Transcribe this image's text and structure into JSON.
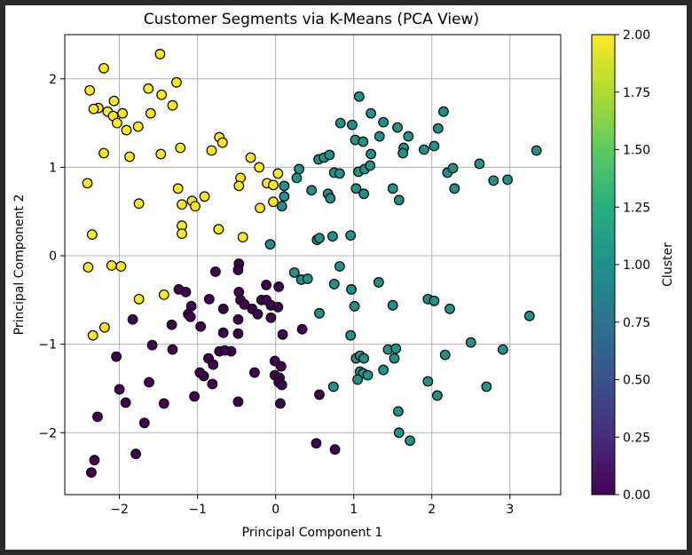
{
  "chart_data": {
    "type": "scatter",
    "title": "Customer Segments via K-Means (PCA View)",
    "xlabel": "Principal Component 1",
    "ylabel": "Principal Component 2",
    "xlim": [
      -2.7,
      3.65
    ],
    "ylim": [
      -2.7,
      2.5
    ],
    "xticks": [
      -2,
      -1,
      0,
      1,
      2,
      3
    ],
    "xtick_labels": [
      "−2",
      "−1",
      "0",
      "1",
      "2",
      "3"
    ],
    "yticks": [
      -2,
      -1,
      0,
      1,
      2
    ],
    "ytick_labels": [
      "−2",
      "−1",
      "0",
      "1",
      "2"
    ],
    "grid": true,
    "colormap": "viridis",
    "colorbar": {
      "label": "Cluster",
      "min": 0.0,
      "max": 2.0,
      "ticks": [
        0.0,
        0.25,
        0.5,
        0.75,
        1.0,
        1.25,
        1.5,
        1.75,
        2.0
      ],
      "tick_labels": [
        "0.00",
        "0.25",
        "0.50",
        "0.75",
        "1.00",
        "1.25",
        "1.50",
        "1.75",
        "2.00"
      ]
    },
    "cluster_colors": {
      "0": "#440154",
      "1": "#21918c",
      "2": "#fde725"
    },
    "marker_edge_color": "#000000",
    "series": [
      {
        "cluster": 2,
        "points": [
          [
            -1.48,
            2.28
          ],
          [
            -2.2,
            2.12
          ],
          [
            -1.27,
            1.96
          ],
          [
            -2.38,
            1.87
          ],
          [
            -1.63,
            1.89
          ],
          [
            -1.46,
            1.82
          ],
          [
            -2.07,
            1.75
          ],
          [
            -1.32,
            1.7
          ],
          [
            -2.27,
            1.67
          ],
          [
            -2.33,
            1.66
          ],
          [
            -2.15,
            1.63
          ],
          [
            -2.08,
            1.58
          ],
          [
            -1.96,
            1.61
          ],
          [
            -1.6,
            1.61
          ],
          [
            -2.03,
            1.5
          ],
          [
            -1.76,
            1.46
          ],
          [
            -1.91,
            1.42
          ],
          [
            -2.2,
            1.16
          ],
          [
            -1.87,
            1.12
          ],
          [
            -1.47,
            1.15
          ],
          [
            -1.22,
            1.22
          ],
          [
            -0.72,
            1.34
          ],
          [
            -0.68,
            1.28
          ],
          [
            -0.82,
            1.19
          ],
          [
            -0.32,
            1.11
          ],
          [
            -0.21,
            1.0
          ],
          [
            -0.11,
            0.82
          ],
          [
            -0.03,
            0.8
          ],
          [
            0.03,
            0.93
          ],
          [
            -0.45,
            0.88
          ],
          [
            -0.47,
            0.79
          ],
          [
            -1.25,
            0.76
          ],
          [
            -2.41,
            0.82
          ],
          [
            -1.07,
            0.62
          ],
          [
            -0.91,
            0.67
          ],
          [
            -1.2,
            0.58
          ],
          [
            -1.03,
            0.56
          ],
          [
            -1.75,
            0.59
          ],
          [
            -0.2,
            0.54
          ],
          [
            -0.03,
            0.61
          ],
          [
            -1.2,
            0.34
          ],
          [
            -1.2,
            0.25
          ],
          [
            -0.73,
            0.3
          ],
          [
            -0.42,
            0.21
          ],
          [
            -2.35,
            0.24
          ],
          [
            -2.4,
            -0.13
          ],
          [
            -2.1,
            -0.11
          ],
          [
            -1.98,
            -0.12
          ],
          [
            -1.43,
            -0.44
          ],
          [
            -1.75,
            -0.49
          ],
          [
            -2.19,
            -0.81
          ],
          [
            -2.34,
            -0.9
          ]
        ]
      },
      {
        "cluster": 1,
        "points": [
          [
            1.07,
            1.8
          ],
          [
            2.15,
            1.63
          ],
          [
            1.22,
            1.61
          ],
          [
            1.38,
            1.51
          ],
          [
            0.83,
            1.5
          ],
          [
            0.98,
            1.48
          ],
          [
            1.56,
            1.45
          ],
          [
            2.08,
            1.44
          ],
          [
            1.7,
            1.35
          ],
          [
            1.33,
            1.35
          ],
          [
            1.02,
            1.31
          ],
          [
            1.12,
            1.29
          ],
          [
            1.64,
            1.22
          ],
          [
            1.63,
            1.16
          ],
          [
            1.9,
            1.2
          ],
          [
            2.03,
            1.24
          ],
          [
            0.55,
            1.09
          ],
          [
            0.62,
            1.11
          ],
          [
            0.69,
            1.14
          ],
          [
            1.22,
            1.15
          ],
          [
            0.3,
            0.98
          ],
          [
            0.75,
            0.94
          ],
          [
            1.06,
            0.95
          ],
          [
            1.14,
            0.98
          ],
          [
            1.21,
            1.02
          ],
          [
            2.2,
            0.94
          ],
          [
            2.27,
            0.99
          ],
          [
            2.61,
            1.04
          ],
          [
            3.34,
            1.19
          ],
          [
            0.27,
            0.88
          ],
          [
            0.82,
            0.93
          ],
          [
            1.03,
            0.76
          ],
          [
            2.79,
            0.85
          ],
          [
            2.97,
            0.86
          ],
          [
            0.11,
            0.79
          ],
          [
            0.46,
            0.74
          ],
          [
            0.67,
            0.7
          ],
          [
            0.7,
            0.65
          ],
          [
            1.13,
            0.7
          ],
          [
            1.5,
            0.76
          ],
          [
            1.58,
            0.63
          ],
          [
            2.29,
            0.76
          ],
          [
            0.11,
            0.67
          ],
          [
            0.08,
            0.56
          ],
          [
            0.53,
            0.18
          ],
          [
            0.56,
            0.2
          ],
          [
            0.73,
            0.22
          ],
          [
            0.96,
            0.23
          ],
          [
            -0.07,
            0.13
          ],
          [
            0.24,
            -0.19
          ],
          [
            0.82,
            -0.12
          ],
          [
            0.33,
            -0.27
          ],
          [
            0.41,
            -0.26
          ],
          [
            0.75,
            -0.32
          ],
          [
            1.32,
            -0.3
          ],
          [
            0.97,
            -0.38
          ],
          [
            1.95,
            -0.49
          ],
          [
            2.03,
            -0.51
          ],
          [
            2.23,
            -0.6
          ],
          [
            1.5,
            -0.56
          ],
          [
            1.01,
            -0.57
          ],
          [
            0.56,
            -0.65
          ],
          [
            3.25,
            -0.68
          ],
          [
            0.96,
            -0.9
          ],
          [
            2.5,
            -0.98
          ],
          [
            1.44,
            -1.06
          ],
          [
            1.54,
            -1.05
          ],
          [
            2.91,
            -1.06
          ],
          [
            1.03,
            -1.16
          ],
          [
            1.08,
            -1.13
          ],
          [
            1.13,
            -1.16
          ],
          [
            1.52,
            -1.16
          ],
          [
            2.17,
            -1.12
          ],
          [
            1.38,
            -1.29
          ],
          [
            1.08,
            -1.31
          ],
          [
            1.12,
            -1.33
          ],
          [
            1.18,
            -1.35
          ],
          [
            1.05,
            -1.4
          ],
          [
            1.95,
            -1.42
          ],
          [
            0.74,
            -1.48
          ],
          [
            2.7,
            -1.48
          ],
          [
            2.07,
            -1.58
          ],
          [
            1.57,
            -1.76
          ],
          [
            1.58,
            -2.0
          ],
          [
            1.72,
            -2.09
          ]
        ]
      },
      {
        "cluster": 0,
        "points": [
          [
            -0.47,
            -0.09
          ],
          [
            -0.48,
            -0.16
          ],
          [
            -0.77,
            -0.18
          ],
          [
            -0.12,
            -0.33
          ],
          [
            0.04,
            -0.35
          ],
          [
            -1.24,
            -0.38
          ],
          [
            -1.15,
            -0.41
          ],
          [
            -0.47,
            -0.41
          ],
          [
            -0.45,
            -0.5
          ],
          [
            -0.85,
            -0.49
          ],
          [
            -0.18,
            -0.5
          ],
          [
            -0.12,
            -0.5
          ],
          [
            -0.4,
            -0.55
          ],
          [
            -1.08,
            -0.57
          ],
          [
            -0.3,
            -0.6
          ],
          [
            -0.67,
            -0.6
          ],
          [
            -0.06,
            -0.56
          ],
          [
            0.03,
            -0.58
          ],
          [
            -1.12,
            -0.66
          ],
          [
            -1.83,
            -0.72
          ],
          [
            -1.09,
            -0.69
          ],
          [
            -0.23,
            -0.66
          ],
          [
            -0.48,
            -0.72
          ],
          [
            -0.06,
            -0.7
          ],
          [
            -1.33,
            -0.78
          ],
          [
            -0.96,
            -0.8
          ],
          [
            0.34,
            -0.83
          ],
          [
            -0.67,
            -0.87
          ],
          [
            -0.48,
            -0.88
          ],
          [
            0.09,
            -0.89
          ],
          [
            -1.58,
            -1.01
          ],
          [
            -0.72,
            -1.08
          ],
          [
            -0.57,
            -1.08
          ],
          [
            -0.65,
            -1.07
          ],
          [
            -1.32,
            -1.06
          ],
          [
            -0.86,
            -1.16
          ],
          [
            -0.8,
            -1.23
          ],
          [
            -2.04,
            -1.14
          ],
          [
            -0.01,
            -1.19
          ],
          [
            0.07,
            -1.25
          ],
          [
            -0.92,
            -1.36
          ],
          [
            -0.97,
            -1.32
          ],
          [
            -0.27,
            -1.32
          ],
          [
            -0.01,
            -1.35
          ],
          [
            0.05,
            -1.38
          ],
          [
            -0.81,
            -1.45
          ],
          [
            0.04,
            -1.43
          ],
          [
            0.08,
            -1.46
          ],
          [
            -1.62,
            -1.43
          ],
          [
            -2.0,
            -1.51
          ],
          [
            -1.43,
            -1.67
          ],
          [
            -1.04,
            -1.59
          ],
          [
            -0.48,
            -1.65
          ],
          [
            0.06,
            -1.67
          ],
          [
            0.56,
            -1.57
          ],
          [
            -1.92,
            -1.66
          ],
          [
            -2.28,
            -1.82
          ],
          [
            -1.68,
            -1.89
          ],
          [
            0.52,
            -2.12
          ],
          [
            0.76,
            -2.19
          ],
          [
            -1.79,
            -2.24
          ],
          [
            -2.32,
            -2.31
          ],
          [
            -2.36,
            -2.45
          ]
        ]
      }
    ]
  }
}
